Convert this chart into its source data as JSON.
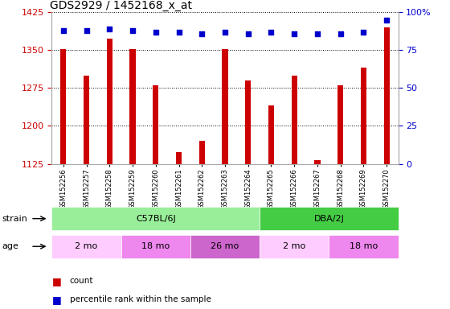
{
  "title": "GDS2929 / 1452168_x_at",
  "samples": [
    "GSM152256",
    "GSM152257",
    "GSM152258",
    "GSM152259",
    "GSM152260",
    "GSM152261",
    "GSM152262",
    "GSM152263",
    "GSM152264",
    "GSM152265",
    "GSM152266",
    "GSM152267",
    "GSM152268",
    "GSM152269",
    "GSM152270"
  ],
  "counts": [
    1352,
    1300,
    1373,
    1352,
    1280,
    1148,
    1170,
    1352,
    1290,
    1240,
    1300,
    1133,
    1280,
    1315,
    1395
  ],
  "percentiles": [
    88,
    88,
    89,
    88,
    87,
    87,
    86,
    87,
    86,
    87,
    86,
    86,
    86,
    87,
    95
  ],
  "ylim_left": [
    1125,
    1425
  ],
  "ylim_right": [
    0,
    100
  ],
  "yticks_left": [
    1125,
    1200,
    1275,
    1350,
    1425
  ],
  "yticks_right": [
    0,
    25,
    50,
    75,
    100
  ],
  "bar_color": "#cc0000",
  "dot_color": "#0000cc",
  "strain_groups": [
    {
      "label": "C57BL/6J",
      "start": 0,
      "end": 9,
      "color": "#99ee99"
    },
    {
      "label": "DBA/2J",
      "start": 9,
      "end": 15,
      "color": "#44cc44"
    }
  ],
  "age_groups": [
    {
      "label": "2 mo",
      "start": 0,
      "end": 3,
      "color": "#ffccff"
    },
    {
      "label": "18 mo",
      "start": 3,
      "end": 6,
      "color": "#ee88ee"
    },
    {
      "label": "26 mo",
      "start": 6,
      "end": 9,
      "color": "#cc66cc"
    },
    {
      "label": "2 mo",
      "start": 9,
      "end": 12,
      "color": "#ffccff"
    },
    {
      "label": "18 mo",
      "start": 12,
      "end": 15,
      "color": "#ee88ee"
    }
  ],
  "background_color": "#ffffff",
  "grid_color": "#000000",
  "tick_label_color_left": "#cc0000",
  "tick_label_color_right": "#0000cc",
  "bar_width": 0.25
}
